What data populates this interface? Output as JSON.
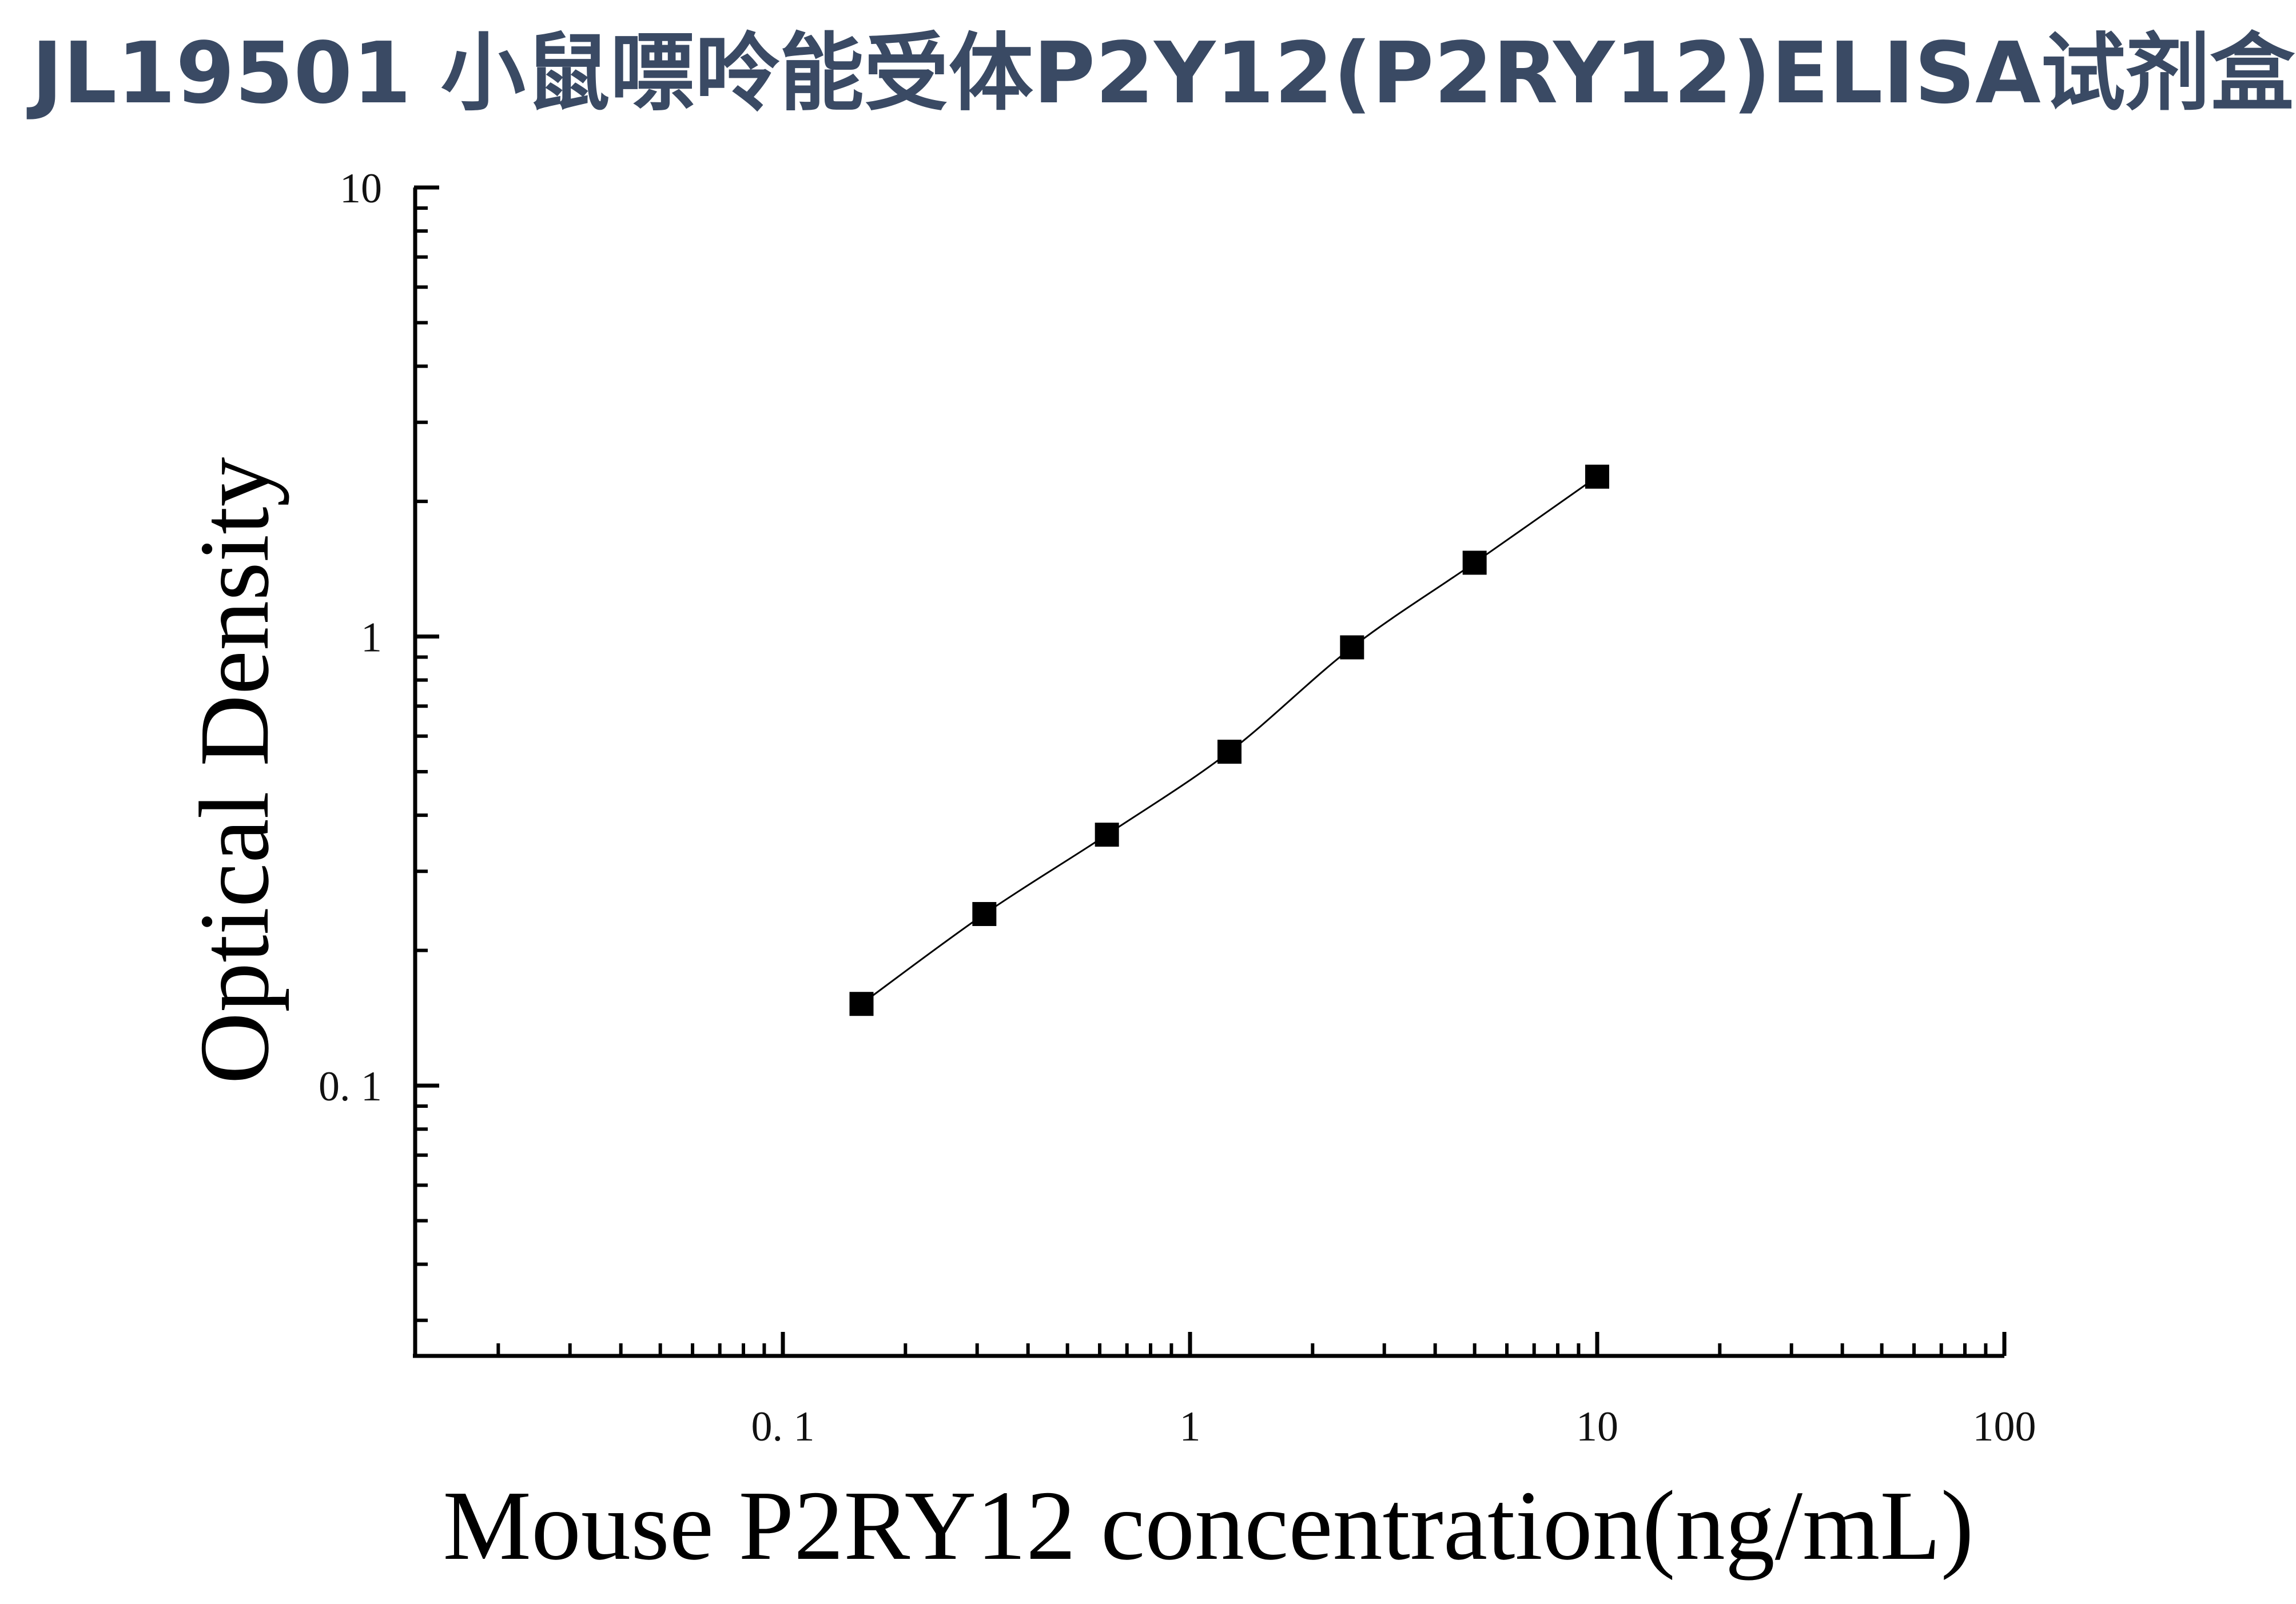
{
  "page_title": "JL19501 小鼠嘌呤能受体P2Y12(P2RY12)ELISA试剂盒",
  "chart_data": {
    "type": "scatter",
    "title": "JL19501 小鼠嘌呤能受体P2Y12(P2RY12)ELISA试剂盒",
    "xlabel": "Mouse P2RY12 concentration(ng/mL)",
    "ylabel": "Optical Density",
    "x_scale": "log",
    "y_scale": "log",
    "xlim": [
      0.0125,
      100
    ],
    "ylim": [
      0.025,
      10
    ],
    "x_ticks": [
      {
        "value": 0.1,
        "label": "0. 1"
      },
      {
        "value": 1,
        "label": "1"
      },
      {
        "value": 10,
        "label": "10"
      },
      {
        "value": 100,
        "label": "100"
      }
    ],
    "y_ticks": [
      {
        "value": 0.1,
        "label": "0. 1"
      },
      {
        "value": 1,
        "label": "1"
      },
      {
        "value": 10,
        "label": "10"
      }
    ],
    "grid": false,
    "legend": "none",
    "marker_color": "#000000",
    "series": [
      {
        "marker": "square",
        "fit_line": true,
        "points": [
          {
            "x": 0.156,
            "y": 0.152
          },
          {
            "x": 0.3125,
            "y": 0.241
          },
          {
            "x": 0.625,
            "y": 0.362
          },
          {
            "x": 1.25,
            "y": 0.554
          },
          {
            "x": 2.5,
            "y": 0.946
          },
          {
            "x": 5,
            "y": 1.46
          },
          {
            "x": 10,
            "y": 2.27
          }
        ]
      }
    ]
  }
}
